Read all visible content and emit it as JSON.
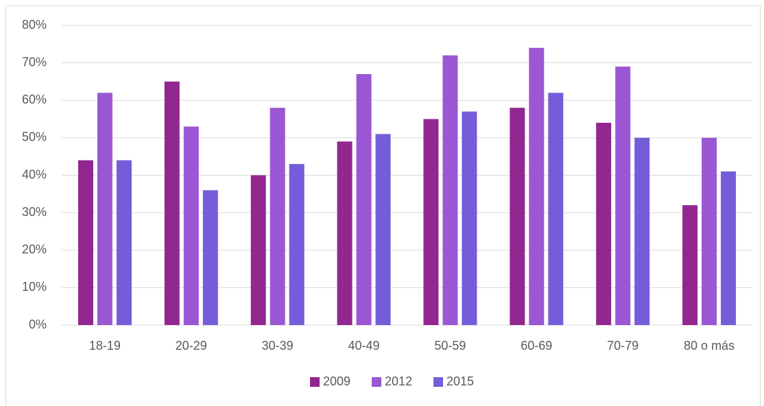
{
  "chart_data": {
    "type": "bar",
    "categories": [
      "18-19",
      "20-29",
      "30-39",
      "40-49",
      "50-59",
      "60-69",
      "70-79",
      "80 o más"
    ],
    "series": [
      {
        "name": "2009",
        "color": "#92278f",
        "values": [
          44,
          65,
          40,
          49,
          55,
          58,
          54,
          32
        ]
      },
      {
        "name": "2012",
        "color": "#9b57d3",
        "values": [
          62,
          53,
          58,
          67,
          72,
          74,
          69,
          50
        ]
      },
      {
        "name": "2015",
        "color": "#755dd9",
        "values": [
          44,
          36,
          43,
          51,
          57,
          62,
          50,
          41
        ]
      }
    ],
    "ylim": [
      0,
      80
    ],
    "yticks": [
      {
        "value": 0,
        "label": "0%"
      },
      {
        "value": 10,
        "label": "10%"
      },
      {
        "value": 20,
        "label": "20%"
      },
      {
        "value": 30,
        "label": "30%"
      },
      {
        "value": 40,
        "label": "40%"
      },
      {
        "value": 50,
        "label": "50%"
      },
      {
        "value": 60,
        "label": "60%"
      },
      {
        "value": 70,
        "label": "70%"
      },
      {
        "value": 80,
        "label": "80%"
      }
    ],
    "grid": true,
    "legend": "bottom"
  }
}
